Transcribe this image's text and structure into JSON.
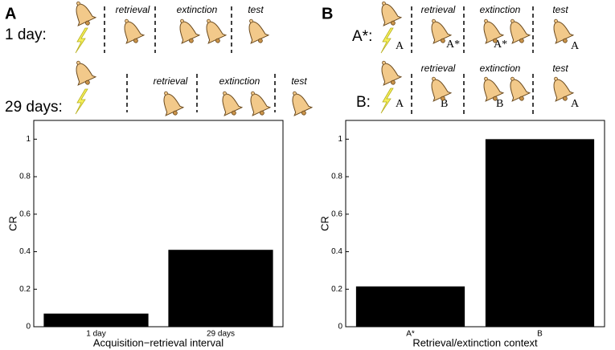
{
  "schematic": {
    "panels": [
      {
        "label": "A",
        "rows": [
          {
            "label": "1 day:",
            "phases": [
              "retrieval",
              "extinction",
              "test"
            ]
          },
          {
            "label": "29 days:",
            "phases": [
              "retrieval",
              "extinction",
              "test"
            ]
          }
        ]
      },
      {
        "label": "B",
        "rows": [
          {
            "label": "A*:",
            "phases": [
              "retrieval",
              "extinction",
              "test"
            ],
            "contexts": [
              "A",
              "A*",
              "A*",
              "A"
            ]
          },
          {
            "label": "B:",
            "phases": [
              "retrieval",
              "extinction",
              "test"
            ],
            "contexts": [
              "A",
              "B",
              "B",
              "A"
            ]
          }
        ]
      }
    ]
  },
  "chart_data": [
    {
      "type": "bar",
      "ylabel": "CR",
      "xlabel": "Acquisition−retrieval interval",
      "categories": [
        "1 day",
        "29 days"
      ],
      "values": [
        0.07,
        0.41
      ],
      "color": "#000000",
      "ylim": [
        0,
        1.1
      ],
      "yticks": [
        0,
        0.2,
        0.4,
        0.6,
        0.8,
        1
      ]
    },
    {
      "type": "bar",
      "ylabel": "CR",
      "xlabel": "Retrieval/extinction context",
      "categories": [
        "A*",
        "B"
      ],
      "values": [
        0.215,
        1.0
      ],
      "color": "#000000",
      "ylim": [
        0,
        1.1
      ],
      "yticks": [
        0,
        0.2,
        0.4,
        0.6,
        0.8,
        1
      ]
    }
  ]
}
